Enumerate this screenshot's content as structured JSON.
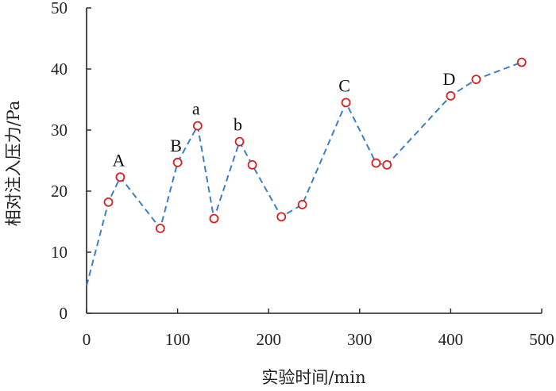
{
  "chart_data": {
    "type": "line",
    "xlabel": "实验时间/min",
    "ylabel": "相对注入压力/Pa",
    "xlim": [
      0,
      500
    ],
    "ylim": [
      0,
      50
    ],
    "xticks": [
      0,
      100,
      200,
      300,
      400,
      500
    ],
    "yticks": [
      0,
      10,
      20,
      30,
      40,
      50
    ],
    "grid": false,
    "series": [
      {
        "line_color": "#3a7fc7",
        "line_style": "dashed",
        "marker_color": "#d62020",
        "line_points": [
          {
            "x": 0,
            "y": 4.5
          },
          {
            "x": 24,
            "y": 18.2
          },
          {
            "x": 37,
            "y": 22.3
          },
          {
            "x": 81,
            "y": 13.9
          },
          {
            "x": 100,
            "y": 24.7
          },
          {
            "x": 122,
            "y": 30.7
          },
          {
            "x": 140,
            "y": 15.5
          },
          {
            "x": 168,
            "y": 28.1
          },
          {
            "x": 182,
            "y": 24.3
          },
          {
            "x": 214,
            "y": 15.8
          },
          {
            "x": 237,
            "y": 17.8
          },
          {
            "x": 285,
            "y": 34.5
          },
          {
            "x": 318,
            "y": 24.6
          },
          {
            "x": 330,
            "y": 24.3
          },
          {
            "x": 400,
            "y": 35.6
          },
          {
            "x": 428,
            "y": 38.3
          },
          {
            "x": 478,
            "y": 41.1
          }
        ],
        "markers": [
          {
            "x": 24,
            "y": 18.2
          },
          {
            "x": 37,
            "y": 22.3
          },
          {
            "x": 81,
            "y": 13.9
          },
          {
            "x": 100,
            "y": 24.7
          },
          {
            "x": 122,
            "y": 30.7
          },
          {
            "x": 140,
            "y": 15.5
          },
          {
            "x": 168,
            "y": 28.1
          },
          {
            "x": 182,
            "y": 24.3
          },
          {
            "x": 214,
            "y": 15.8
          },
          {
            "x": 237,
            "y": 17.8
          },
          {
            "x": 285,
            "y": 34.5
          },
          {
            "x": 318,
            "y": 24.6
          },
          {
            "x": 330,
            "y": 24.3
          },
          {
            "x": 400,
            "y": 35.6
          },
          {
            "x": 428,
            "y": 38.3
          },
          {
            "x": 478,
            "y": 41.1
          }
        ]
      }
    ],
    "annotations": [
      {
        "text": "A",
        "x": 37,
        "y": 22.3
      },
      {
        "text": "B",
        "x": 100,
        "y": 24.7
      },
      {
        "text": "a",
        "x": 122,
        "y": 30.7
      },
      {
        "text": "b",
        "x": 168,
        "y": 28.1
      },
      {
        "text": "C",
        "x": 285,
        "y": 34.5
      },
      {
        "text": "D",
        "x": 400,
        "y": 35.6
      }
    ]
  }
}
